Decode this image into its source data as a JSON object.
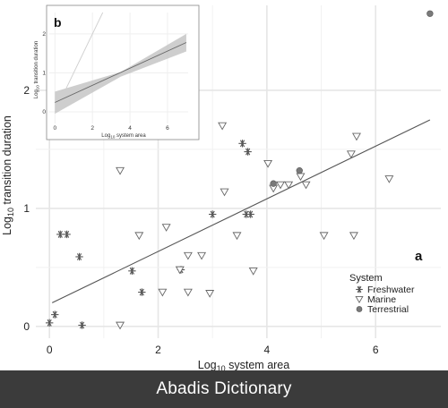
{
  "chart_data": [
    {
      "type": "scatter",
      "panel_label": "a",
      "xlabel_base": "Log",
      "xlabel_sub": "10",
      "xlabel_rest": " system area",
      "ylabel_base": "Log",
      "ylabel_sub": "10",
      "ylabel_rest": " transition duration",
      "xlim": [
        -0.25,
        7.2
      ],
      "ylim": [
        -0.1,
        2.72
      ],
      "x_ticks": [
        0,
        2,
        4,
        6
      ],
      "y_ticks": [
        0,
        1,
        2
      ],
      "grid": true,
      "legend_title": "System",
      "legend_position": "bottom-right",
      "regression_line": [
        [
          0.05,
          0.2
        ],
        [
          7.0,
          1.75
        ]
      ],
      "series": [
        {
          "name": "Freshwater",
          "marker": "asterisk",
          "points": [
            [
              0.0,
              0.03
            ],
            [
              0.1,
              0.1
            ],
            [
              0.6,
              0.01
            ],
            [
              0.55,
              0.59
            ],
            [
              0.2,
              0.78
            ],
            [
              0.32,
              0.78
            ],
            [
              1.52,
              0.47
            ],
            [
              1.7,
              0.29
            ],
            [
              2.42,
              0.48
            ],
            [
              3.0,
              0.95
            ],
            [
              3.55,
              1.55
            ],
            [
              3.65,
              1.48
            ],
            [
              3.7,
              0.95
            ],
            [
              3.62,
              0.95
            ]
          ]
        },
        {
          "name": "Marine",
          "marker": "triangle-down",
          "points": [
            [
              1.3,
              1.32
            ],
            [
              1.3,
              0.01
            ],
            [
              1.65,
              0.77
            ],
            [
              2.15,
              0.84
            ],
            [
              2.08,
              0.29
            ],
            [
              2.4,
              0.48
            ],
            [
              2.55,
              0.6
            ],
            [
              2.55,
              0.29
            ],
            [
              2.8,
              0.6
            ],
            [
              2.95,
              0.28
            ],
            [
              3.18,
              1.7
            ],
            [
              3.22,
              1.14
            ],
            [
              3.45,
              0.77
            ],
            [
              3.75,
              0.47
            ],
            [
              4.02,
              1.38
            ],
            [
              4.12,
              1.17
            ],
            [
              4.25,
              1.2
            ],
            [
              4.4,
              1.2
            ],
            [
              4.62,
              1.27
            ],
            [
              4.72,
              1.2
            ],
            [
              5.05,
              0.77
            ],
            [
              5.55,
              1.46
            ],
            [
              5.6,
              0.77
            ],
            [
              5.65,
              1.61
            ],
            [
              6.25,
              1.25
            ]
          ]
        },
        {
          "name": "Terrestrial",
          "marker": "circle",
          "points": [
            [
              4.12,
              1.21
            ],
            [
              4.6,
              1.32
            ],
            [
              7.0,
              2.65
            ]
          ]
        }
      ]
    },
    {
      "type": "line",
      "panel_label": "b",
      "xlabel_base": "Log",
      "xlabel_sub": "10",
      "xlabel_rest": " system area",
      "ylabel_base": "Log",
      "ylabel_sub": "10",
      "ylabel_rest": " transition duration",
      "xlim": [
        -0.3,
        7.1
      ],
      "ylim": [
        -0.3,
        2.55
      ],
      "x_ticks": [
        0,
        2,
        4,
        6
      ],
      "y_ticks": [
        0,
        1,
        2
      ],
      "fit_line": [
        [
          0,
          0.24
        ],
        [
          7,
          1.78
        ]
      ],
      "band_upper": [
        [
          0,
          0.52
        ],
        [
          3.5,
          1.02
        ],
        [
          7,
          2.0
        ]
      ],
      "band_lower": [
        [
          0,
          -0.05
        ],
        [
          3.5,
          0.9
        ],
        [
          7,
          1.55
        ]
      ],
      "identity_line": [
        [
          0,
          0
        ],
        [
          2.55,
          2.55
        ]
      ]
    }
  ],
  "footer": {
    "text": "Abadis Dictionary"
  }
}
